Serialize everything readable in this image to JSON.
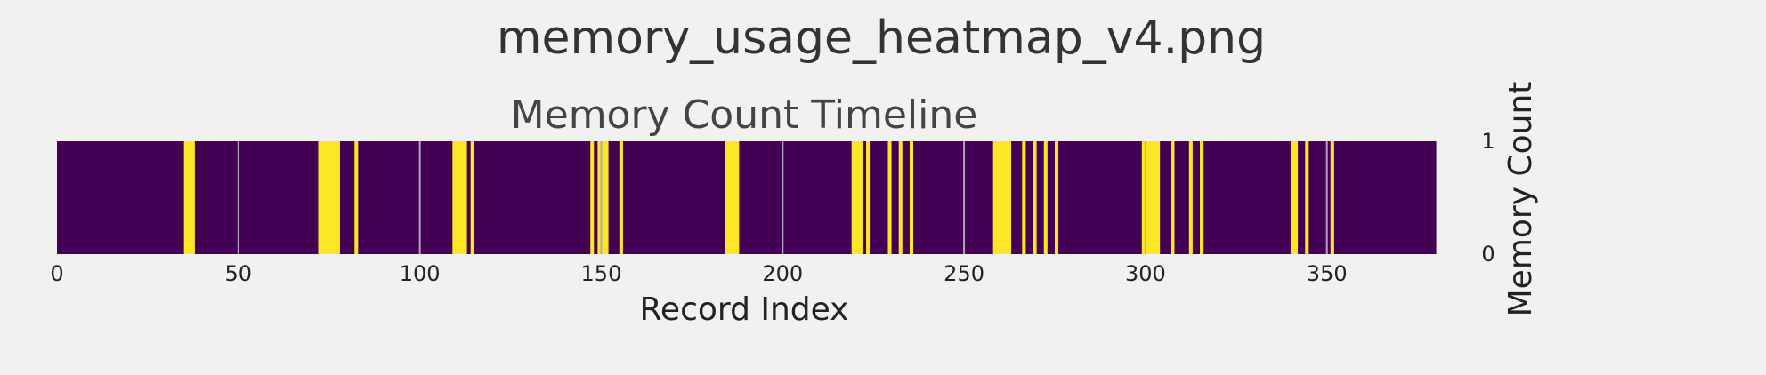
{
  "page": {
    "suptitle": "memory_usage_heatmap_v4.png"
  },
  "chart_data": {
    "type": "heatmap",
    "title": "Memory Count Timeline",
    "xlabel": "Record Index",
    "xlim": [
      0,
      380
    ],
    "x_ticks": [
      0,
      50,
      100,
      150,
      200,
      250,
      300,
      350
    ],
    "n_records": 380,
    "active_indices": [
      35,
      36,
      37,
      72,
      73,
      74,
      75,
      76,
      77,
      82,
      109,
      110,
      111,
      112,
      114,
      147,
      149,
      150,
      151,
      155,
      184,
      185,
      186,
      187,
      219,
      220,
      221,
      223,
      229,
      232,
      235,
      258,
      259,
      260,
      261,
      262,
      266,
      269,
      272,
      275,
      299,
      300,
      301,
      302,
      303,
      307,
      312,
      315,
      340,
      341,
      344,
      351
    ],
    "colorbar": {
      "label": "Memory Count",
      "ticks": [
        0,
        1
      ],
      "range": [
        0,
        1
      ]
    },
    "colors": {
      "low": "#440154",
      "high": "#fde725",
      "grid": "#b0a8b8",
      "background": "#f1f1f1",
      "text": "#333333"
    },
    "grid": true
  }
}
